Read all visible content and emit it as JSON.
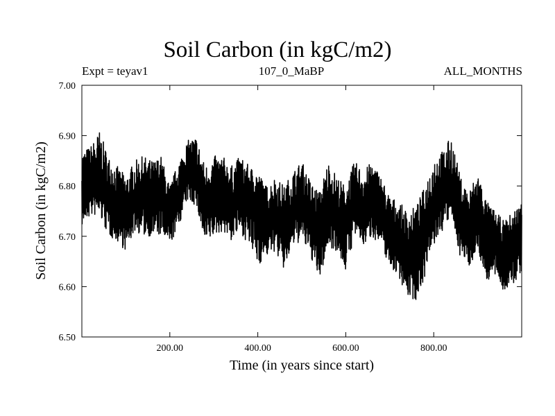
{
  "chart_data": {
    "type": "line",
    "title": "Soil Carbon (in kgC/m2)",
    "subtitle_left": "Expt = teyav1",
    "subtitle_center": "107_0_MaBP",
    "subtitle_right": "ALL_MONTHS",
    "xlabel": "Time (in years since start)",
    "ylabel": "Soil Carbon (in kgC/m2)",
    "xlim": [
      0,
      1000
    ],
    "ylim": [
      6.5,
      7.0
    ],
    "xticks": [
      200,
      400,
      600,
      800
    ],
    "xtick_labels": [
      "200.00",
      "400.00",
      "600.00",
      "800.00"
    ],
    "yticks": [
      6.5,
      6.6,
      6.7,
      6.8,
      6.9,
      7.0
    ],
    "ytick_labels": [
      "6.50",
      "6.60",
      "6.70",
      "6.80",
      "6.90",
      "7.00"
    ],
    "grid": false,
    "series": [
      {
        "name": "Soil Carbon",
        "line_color": "#000000",
        "x": [
          0,
          20,
          40,
          60,
          80,
          100,
          120,
          140,
          160,
          180,
          200,
          220,
          240,
          260,
          280,
          300,
          320,
          340,
          360,
          380,
          400,
          420,
          440,
          460,
          480,
          500,
          520,
          540,
          560,
          580,
          600,
          620,
          640,
          660,
          680,
          700,
          720,
          740,
          760,
          780,
          800,
          820,
          840,
          860,
          880,
          900,
          920,
          940,
          960,
          980,
          1000
        ],
        "mean": [
          6.79,
          6.8,
          6.81,
          6.78,
          6.76,
          6.74,
          6.77,
          6.78,
          6.77,
          6.78,
          6.74,
          6.78,
          6.83,
          6.82,
          6.76,
          6.77,
          6.78,
          6.76,
          6.78,
          6.77,
          6.76,
          6.73,
          6.74,
          6.72,
          6.75,
          6.77,
          6.73,
          6.7,
          6.76,
          6.74,
          6.72,
          6.78,
          6.75,
          6.77,
          6.75,
          6.71,
          6.69,
          6.66,
          6.68,
          6.72,
          6.76,
          6.79,
          6.8,
          6.74,
          6.71,
          6.75,
          6.7,
          6.68,
          6.66,
          6.68,
          6.7
        ],
        "min": [
          6.72,
          6.74,
          6.74,
          6.7,
          6.69,
          6.67,
          6.71,
          6.7,
          6.7,
          6.7,
          6.68,
          6.72,
          6.77,
          6.76,
          6.68,
          6.7,
          6.71,
          6.69,
          6.71,
          6.68,
          6.64,
          6.66,
          6.67,
          6.63,
          6.68,
          6.69,
          6.66,
          6.61,
          6.68,
          6.67,
          6.63,
          6.7,
          6.68,
          6.7,
          6.68,
          6.64,
          6.62,
          6.58,
          6.57,
          6.62,
          6.68,
          6.71,
          6.74,
          6.66,
          6.64,
          6.67,
          6.61,
          6.62,
          6.59,
          6.6,
          6.63
        ],
        "max": [
          6.87,
          6.88,
          6.91,
          6.86,
          6.84,
          6.82,
          6.85,
          6.86,
          6.85,
          6.86,
          6.8,
          6.85,
          6.89,
          6.9,
          6.84,
          6.86,
          6.86,
          6.84,
          6.86,
          6.84,
          6.83,
          6.8,
          6.82,
          6.8,
          6.83,
          6.85,
          6.81,
          6.79,
          6.85,
          6.82,
          6.8,
          6.85,
          6.83,
          6.85,
          6.82,
          6.78,
          6.77,
          6.75,
          6.76,
          6.8,
          6.86,
          6.87,
          6.9,
          6.82,
          6.79,
          6.83,
          6.77,
          6.75,
          6.73,
          6.75,
          6.77
        ]
      }
    ]
  }
}
